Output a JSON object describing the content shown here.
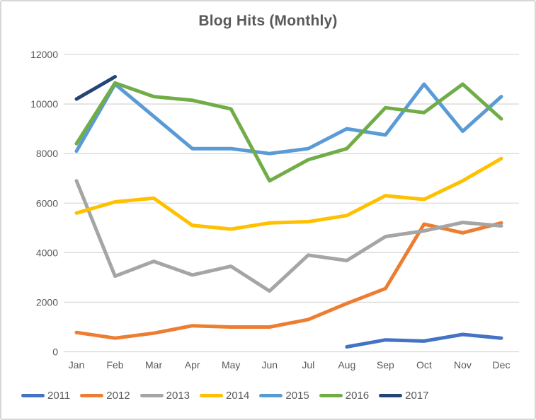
{
  "chart_data": {
    "type": "line",
    "title": "Blog Hits (Monthly)",
    "categories": [
      "Jan",
      "Feb",
      "Mar",
      "Apr",
      "May",
      "Jun",
      "Jul",
      "Aug",
      "Sep",
      "Oct",
      "Nov",
      "Dec"
    ],
    "series": [
      {
        "name": "2011",
        "color": "#4472C4",
        "values": [
          null,
          null,
          null,
          null,
          null,
          null,
          null,
          200,
          480,
          430,
          700,
          550
        ]
      },
      {
        "name": "2012",
        "color": "#ED7D31",
        "values": [
          780,
          550,
          750,
          1050,
          1000,
          1000,
          1300,
          1950,
          2550,
          5150,
          4800,
          5200
        ]
      },
      {
        "name": "2013",
        "color": "#A5A5A5",
        "values": [
          6900,
          3050,
          3650,
          3100,
          3450,
          2450,
          3900,
          3680,
          4650,
          4880,
          5220,
          5080
        ]
      },
      {
        "name": "2014",
        "color": "#FFC000",
        "values": [
          5600,
          6050,
          6200,
          5100,
          4950,
          5200,
          5250,
          5500,
          6300,
          6150,
          6900,
          7800
        ]
      },
      {
        "name": "2015",
        "color": "#5B9BD5",
        "values": [
          8100,
          10800,
          9500,
          8200,
          8200,
          8000,
          8200,
          9000,
          8750,
          10800,
          8900,
          10300
        ]
      },
      {
        "name": "2016",
        "color": "#70AD47",
        "values": [
          8400,
          10850,
          10300,
          10150,
          9800,
          6900,
          7750,
          8200,
          9850,
          9650,
          10800,
          9400
        ]
      },
      {
        "name": "2017",
        "color": "#264478",
        "values": [
          10200,
          11100,
          null,
          null,
          null,
          null,
          null,
          null,
          null,
          null,
          null,
          null
        ]
      }
    ],
    "xlabel": "",
    "ylabel": "",
    "ylim": [
      0,
      12000
    ],
    "ytick_step": 2000,
    "grid": "horizontal",
    "gridline_color": "#D9D9D9",
    "axis_text_color": "#595959",
    "legend_position": "bottom"
  }
}
